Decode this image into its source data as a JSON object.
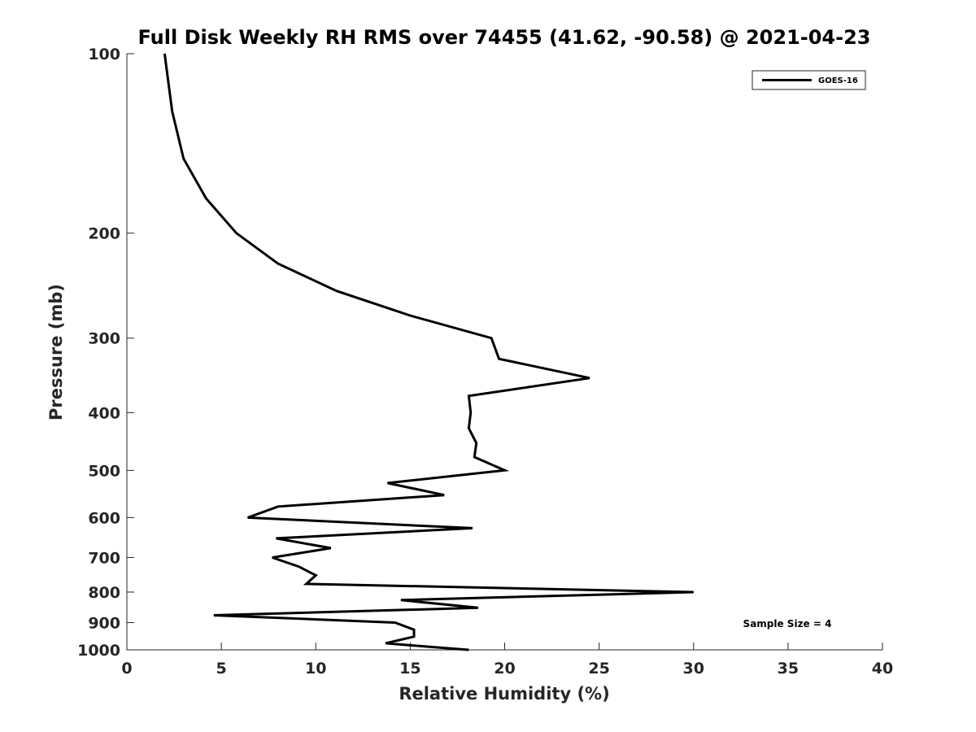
{
  "chart_data": {
    "type": "line",
    "title": "Full Disk Weekly RH RMS over 74455 (41.62, -90.58) @ 2021-04-23",
    "xlabel": "Relative Humidity (%)",
    "ylabel": "Pressure (mb)",
    "xlim": [
      0,
      40
    ],
    "ylim": [
      100,
      1000
    ],
    "y_scale": "log",
    "y_reversed": true,
    "x_ticks": [
      0,
      5,
      10,
      15,
      20,
      25,
      30,
      35,
      40
    ],
    "y_ticks": [
      100,
      200,
      300,
      400,
      500,
      600,
      700,
      800,
      900,
      1000
    ],
    "grid": false,
    "legend_position": "top-right",
    "annotation": "Sample Size = 4",
    "series": [
      {
        "name": "GOES-16",
        "color": "#000000",
        "points": [
          {
            "rh": 2.0,
            "p": 100
          },
          {
            "rh": 2.4,
            "p": 125
          },
          {
            "rh": 3.0,
            "p": 150
          },
          {
            "rh": 4.2,
            "p": 175
          },
          {
            "rh": 5.8,
            "p": 200
          },
          {
            "rh": 8.0,
            "p": 225
          },
          {
            "rh": 11.1,
            "p": 250
          },
          {
            "rh": 15.0,
            "p": 275
          },
          {
            "rh": 19.3,
            "p": 300
          },
          {
            "rh": 19.7,
            "p": 325
          },
          {
            "rh": 24.5,
            "p": 350
          },
          {
            "rh": 18.1,
            "p": 375
          },
          {
            "rh": 18.2,
            "p": 400
          },
          {
            "rh": 18.1,
            "p": 425
          },
          {
            "rh": 18.5,
            "p": 450
          },
          {
            "rh": 18.4,
            "p": 475
          },
          {
            "rh": 20.0,
            "p": 500
          },
          {
            "rh": 13.8,
            "p": 525
          },
          {
            "rh": 16.8,
            "p": 550
          },
          {
            "rh": 8.0,
            "p": 575
          },
          {
            "rh": 6.4,
            "p": 600
          },
          {
            "rh": 18.3,
            "p": 625
          },
          {
            "rh": 7.9,
            "p": 650
          },
          {
            "rh": 10.8,
            "p": 675
          },
          {
            "rh": 7.7,
            "p": 700
          },
          {
            "rh": 9.1,
            "p": 725
          },
          {
            "rh": 10.0,
            "p": 750
          },
          {
            "rh": 9.5,
            "p": 775
          },
          {
            "rh": 30.0,
            "p": 800
          },
          {
            "rh": 14.5,
            "p": 825
          },
          {
            "rh": 18.6,
            "p": 850
          },
          {
            "rh": 4.6,
            "p": 875
          },
          {
            "rh": 14.2,
            "p": 900
          },
          {
            "rh": 15.2,
            "p": 925
          },
          {
            "rh": 15.2,
            "p": 950
          },
          {
            "rh": 13.7,
            "p": 975
          },
          {
            "rh": 16.3,
            "p": 990
          },
          {
            "rh": 18.1,
            "p": 1000
          }
        ]
      }
    ]
  }
}
